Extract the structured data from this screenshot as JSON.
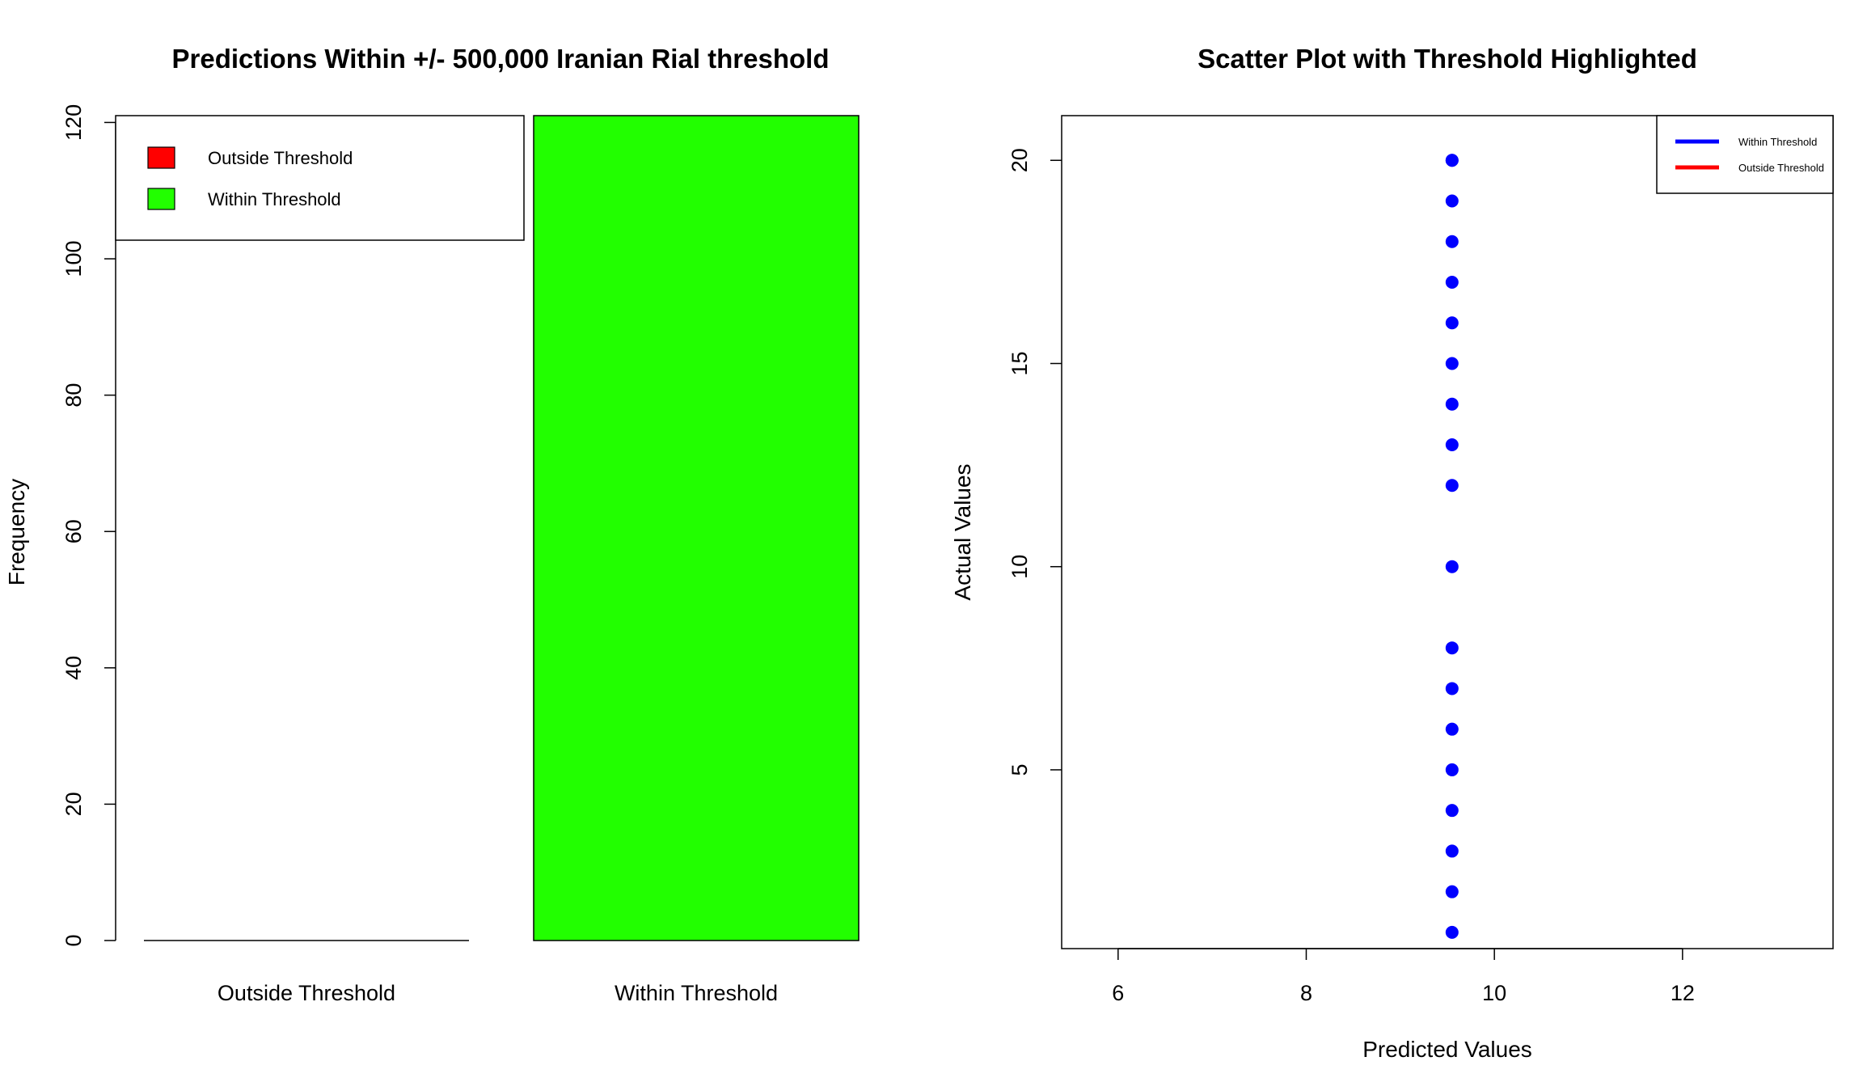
{
  "chart_data": [
    {
      "type": "bar",
      "title": "Predictions Within +/- 500,000 Iranian Rial threshold",
      "xlabel": "",
      "ylabel": "Frequency",
      "categories": [
        "Outside Threshold",
        "Within Threshold"
      ],
      "values": [
        0,
        121
      ],
      "colors": [
        "#ff0000",
        "#22ff00"
      ],
      "ylim": [
        0,
        121
      ],
      "yticks": [
        0,
        20,
        40,
        60,
        80,
        100,
        120
      ],
      "grid": false,
      "legend": {
        "placement": "top-left",
        "entries": [
          {
            "label": "Outside Threshold",
            "color": "#ff0000"
          },
          {
            "label": "Within Threshold",
            "color": "#22ff00"
          }
        ]
      }
    },
    {
      "type": "scatter",
      "title": "Scatter Plot with Threshold Highlighted",
      "xlabel": "Predicted Values",
      "ylabel": "Actual Values",
      "xlim": [
        5.4,
        13.6
      ],
      "ylim": [
        0.6,
        21.1
      ],
      "xticks": [
        6,
        8,
        10,
        12
      ],
      "yticks": [
        5,
        10,
        15,
        20
      ],
      "grid": false,
      "point_color": "#0000ff",
      "x": [
        9.55,
        9.55,
        9.55,
        9.55,
        9.55,
        9.55,
        9.55,
        9.55,
        9.55,
        9.55,
        9.55,
        9.55,
        9.55,
        9.55,
        9.55,
        9.55,
        9.55,
        9.55,
        9.55
      ],
      "y": [
        1,
        2,
        3,
        4,
        5,
        6,
        7,
        8,
        10,
        12,
        13,
        14,
        15,
        16,
        17,
        18,
        19,
        20,
        20
      ],
      "legend": {
        "placement": "top-right",
        "entries": [
          {
            "label": "Within Threshold",
            "color": "#0000ff"
          },
          {
            "label": "Outside Threshold",
            "color": "#ff0000"
          }
        ]
      }
    }
  ]
}
